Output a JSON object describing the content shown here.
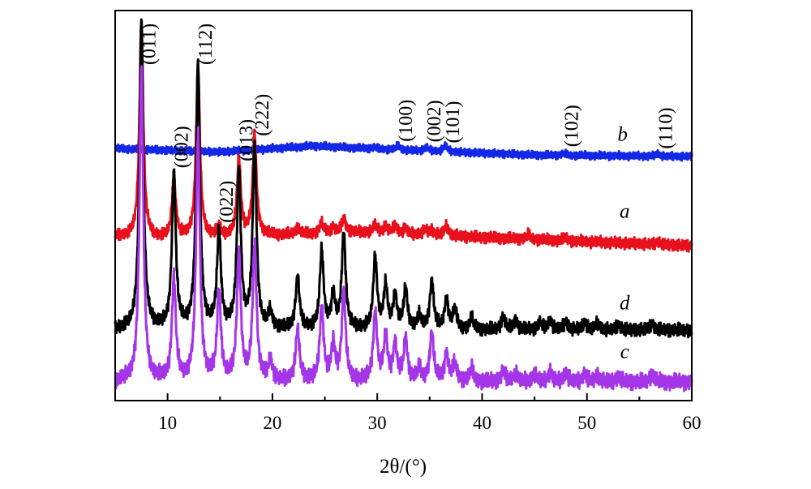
{
  "chart_data": {
    "type": "line",
    "title": "",
    "xlabel": "2θ/(°)",
    "ylabel": "",
    "xlim": [
      5,
      60
    ],
    "y_ticks_shown": false,
    "x_ticks": [
      "10",
      "20",
      "30",
      "40",
      "50",
      "60"
    ],
    "series_colors": {
      "a": "#e8101c",
      "b": "#1328e6",
      "c": "#a436e8",
      "d": "#000000"
    },
    "series": [
      {
        "name": "b",
        "color": "#1328e6",
        "baseline": [
          [
            5,
            1.21
          ],
          [
            15,
            1.12
          ],
          [
            24,
            1.28
          ],
          [
            32,
            1.17
          ],
          [
            45,
            1.04
          ],
          [
            60,
            1.0
          ]
        ],
        "peaks": [
          [
            29.7,
            0.05
          ],
          [
            32.0,
            0.12
          ],
          [
            34.7,
            0.1
          ],
          [
            36.5,
            0.17
          ],
          [
            47.8,
            0.05
          ],
          [
            56.8,
            0.06
          ]
        ]
      },
      {
        "name": "a",
        "color": "#e8101c",
        "baseline": [
          [
            5,
            0.0
          ],
          [
            8,
            -0.06
          ],
          [
            20,
            0.02
          ],
          [
            28,
            0.08
          ],
          [
            36,
            0.02
          ],
          [
            60,
            -0.16
          ]
        ],
        "peaks": [
          [
            7.5,
            3.8
          ],
          [
            10.6,
            1.05
          ],
          [
            12.9,
            3.0
          ],
          [
            14.9,
            0.15
          ],
          [
            16.8,
            1.35
          ],
          [
            18.3,
            1.75
          ],
          [
            22.4,
            0.12
          ],
          [
            24.7,
            0.18
          ],
          [
            25.8,
            0.1
          ],
          [
            26.8,
            0.25
          ],
          [
            29.8,
            0.14
          ],
          [
            30.8,
            0.12
          ],
          [
            31.7,
            0.14
          ],
          [
            32.7,
            0.1
          ],
          [
            34.6,
            0.1
          ],
          [
            35.2,
            0.08
          ],
          [
            36.6,
            0.18
          ],
          [
            44.4,
            0.08
          ],
          [
            47.9,
            0.05
          ],
          [
            56.8,
            0.05
          ]
        ]
      },
      {
        "name": "d",
        "color": "#000000",
        "baseline": [
          [
            5,
            0.0
          ],
          [
            60,
            0.0
          ]
        ],
        "peaks": [
          [
            7.5,
            4.8
          ],
          [
            10.6,
            2.37
          ],
          [
            12.9,
            4.1
          ],
          [
            14.9,
            1.49
          ],
          [
            16.8,
            2.45
          ],
          [
            18.3,
            2.8
          ],
          [
            19.8,
            0.25
          ],
          [
            22.4,
            0.8
          ],
          [
            24.7,
            1.2
          ],
          [
            25.8,
            0.5
          ],
          [
            26.8,
            1.48
          ],
          [
            29.8,
            1.1
          ],
          [
            30.8,
            0.65
          ],
          [
            31.7,
            0.5
          ],
          [
            32.7,
            0.62
          ],
          [
            34.0,
            0.2
          ],
          [
            35.2,
            0.74
          ],
          [
            36.6,
            0.45
          ],
          [
            37.4,
            0.3
          ],
          [
            39.0,
            0.18
          ],
          [
            42.0,
            0.2
          ],
          [
            43.2,
            0.15
          ],
          [
            45.5,
            0.12
          ],
          [
            46.5,
            0.15
          ],
          [
            48.0,
            0.13
          ],
          [
            49.8,
            0.12
          ],
          [
            51.0,
            0.1
          ],
          [
            53.0,
            0.08
          ],
          [
            56.2,
            0.1
          ]
        ]
      },
      {
        "name": "c",
        "color": "#a436e8",
        "baseline": [
          [
            5,
            0.0
          ],
          [
            60,
            0.0
          ]
        ],
        "peaks": [
          [
            7.5,
            3.92
          ],
          [
            10.6,
            1.28
          ],
          [
            12.9,
            3.1
          ],
          [
            14.9,
            1.1
          ],
          [
            16.8,
            1.6
          ],
          [
            18.3,
            1.72
          ],
          [
            19.8,
            0.25
          ],
          [
            22.4,
            0.66
          ],
          [
            24.7,
            0.92
          ],
          [
            25.8,
            0.45
          ],
          [
            26.8,
            1.12
          ],
          [
            29.8,
            0.85
          ],
          [
            30.8,
            0.55
          ],
          [
            31.7,
            0.45
          ],
          [
            32.7,
            0.52
          ],
          [
            34.0,
            0.15
          ],
          [
            35.2,
            0.61
          ],
          [
            36.6,
            0.34
          ],
          [
            37.4,
            0.22
          ],
          [
            39.0,
            0.16
          ],
          [
            42.0,
            0.14
          ],
          [
            43.2,
            0.11
          ],
          [
            45.0,
            0.1
          ],
          [
            46.5,
            0.12
          ],
          [
            48.0,
            0.12
          ],
          [
            49.8,
            0.1
          ],
          [
            51.0,
            0.08
          ],
          [
            53.0,
            0.07
          ],
          [
            56.2,
            0.1
          ]
        ]
      }
    ],
    "series_labels": [
      {
        "name": "b",
        "text": "b",
        "x": 53.4,
        "y": 1.25
      },
      {
        "name": "a",
        "text": "a",
        "x": 53.6,
        "y": 0.22
      },
      {
        "name": "d",
        "text": "d",
        "x": 53.6,
        "y": 0.22
      },
      {
        "name": "c",
        "text": "c",
        "x": 53.6,
        "y": 0.22
      }
    ],
    "annotations": [
      {
        "text": "(011)",
        "x": 7.5,
        "series": "d"
      },
      {
        "text": "(002)",
        "x": 10.6,
        "series": "d"
      },
      {
        "text": "(112)",
        "x": 12.9,
        "series": "d"
      },
      {
        "text": "(022)",
        "x": 14.9,
        "series": "d"
      },
      {
        "text": "(013)",
        "x": 16.8,
        "series": "d"
      },
      {
        "text": "(222)",
        "x": 18.3,
        "series": "d"
      },
      {
        "text": "(100)",
        "x": 32.0,
        "series": "b"
      },
      {
        "text": "(002)",
        "x": 34.7,
        "series": "b"
      },
      {
        "text": "(101)",
        "x": 36.5,
        "series": "b"
      },
      {
        "text": "(102)",
        "x": 47.8,
        "series": "b"
      },
      {
        "text": "(110)",
        "x": 56.8,
        "series": "b"
      }
    ]
  }
}
